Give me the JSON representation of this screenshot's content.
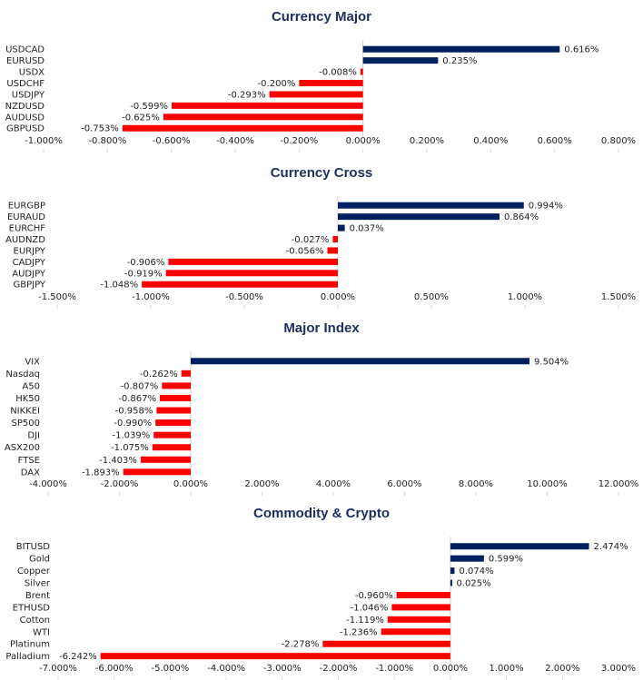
{
  "colors": {
    "positive": "#002060",
    "negative": "#ff0000",
    "title": "#1c2f5e"
  },
  "chart_data": [
    {
      "type": "bar",
      "orientation": "horizontal",
      "title": "Currency Major",
      "categories": [
        "USDCAD",
        "EURUSD",
        "USDX",
        "USDCHF",
        "USDJPY",
        "NZDUSD",
        "AUDUSD",
        "GBPUSD"
      ],
      "values": [
        0.616,
        0.235,
        -0.008,
        -0.2,
        -0.293,
        -0.599,
        -0.625,
        -0.753
      ],
      "value_labels": [
        "0.616%",
        "0.235%",
        "-0.008%",
        "-0.200%",
        "-0.293%",
        "-0.599%",
        "-0.625%",
        "-0.753%"
      ],
      "xlim": [
        -1.0,
        0.8
      ],
      "ticks": [
        -1.0,
        -0.8,
        -0.6,
        -0.4,
        -0.2,
        0.0,
        0.2,
        0.4,
        0.6,
        0.8
      ],
      "tick_labels": [
        "-1.000%",
        "-0.800%",
        "-0.600%",
        "-0.400%",
        "-0.200%",
        "0.000%",
        "0.200%",
        "0.400%",
        "0.600%",
        "0.800%"
      ],
      "xlabel": "",
      "ylabel": "",
      "legend": "none",
      "grid": false
    },
    {
      "type": "bar",
      "orientation": "horizontal",
      "title": "Currency Cross",
      "categories": [
        "EURGBP",
        "EURAUD",
        "EURCHF",
        "AUDNZD",
        "EURJPY",
        "CADJPY",
        "AUDJPY",
        "GBPJPY"
      ],
      "values": [
        0.994,
        0.864,
        0.037,
        -0.027,
        -0.056,
        -0.906,
        -0.919,
        -1.048
      ],
      "value_labels": [
        "0.994%",
        "0.864%",
        "0.037%",
        "-0.027%",
        "-0.056%",
        "-0.906%",
        "-0.919%",
        "-1.048%"
      ],
      "xlim": [
        -1.5,
        1.5
      ],
      "ticks": [
        -1.5,
        -1.0,
        -0.5,
        0.0,
        0.5,
        1.0,
        1.5
      ],
      "tick_labels": [
        "-1.500%",
        "-1.000%",
        "-0.500%",
        "0.000%",
        "0.500%",
        "1.000%",
        "1.500%"
      ],
      "xlabel": "",
      "ylabel": "",
      "legend": "none",
      "grid": false
    },
    {
      "type": "bar",
      "orientation": "horizontal",
      "title": "Major Index",
      "categories": [
        "VIX",
        "Nasdaq",
        "A50",
        "HK50",
        "NIKKEI",
        "SP500",
        "DJI",
        "ASX200",
        "FTSE",
        "DAX"
      ],
      "values": [
        9.504,
        -0.262,
        -0.807,
        -0.867,
        -0.958,
        -0.99,
        -1.039,
        -1.075,
        -1.403,
        -1.893
      ],
      "value_labels": [
        "9.504%",
        "-0.262%",
        "-0.807%",
        "-0.867%",
        "-0.958%",
        "-0.990%",
        "-1.039%",
        "-1.075%",
        "-1.403%",
        "-1.893%"
      ],
      "xlim": [
        -4.0,
        12.0
      ],
      "ticks": [
        -4.0,
        -2.0,
        0.0,
        2.0,
        4.0,
        6.0,
        8.0,
        10.0,
        12.0
      ],
      "tick_labels": [
        "-4.000%",
        "-2.000%",
        "0.000%",
        "2.000%",
        "4.000%",
        "6.000%",
        "8.000%",
        "10.000%",
        "12.000%"
      ],
      "xlabel": "",
      "ylabel": "",
      "legend": "none",
      "grid": false
    },
    {
      "type": "bar",
      "orientation": "horizontal",
      "title": "Commodity & Crypto",
      "categories": [
        "BITUSD",
        "Gold",
        "Copper",
        "Silver",
        "Brent",
        "ETHUSD",
        "Cotton",
        "WTI",
        "Platinum",
        "Palladium"
      ],
      "values": [
        2.474,
        0.599,
        0.074,
        0.025,
        -0.96,
        -1.046,
        -1.119,
        -1.236,
        -2.278,
        -6.242
      ],
      "value_labels": [
        "2.474%",
        "0.599%",
        "0.074%",
        "0.025%",
        "-0.960%",
        "-1.046%",
        "-1.119%",
        "-1.236%",
        "-2.278%",
        "-6.242%"
      ],
      "xlim": [
        -7.0,
        3.0
      ],
      "ticks": [
        -7.0,
        -6.0,
        -5.0,
        -4.0,
        -3.0,
        -2.0,
        -1.0,
        0.0,
        1.0,
        2.0,
        3.0
      ],
      "tick_labels": [
        "-7.000%",
        "-6.000%",
        "-5.000%",
        "-4.000%",
        "-3.000%",
        "-2.000%",
        "-1.000%",
        "0.000%",
        "1.000%",
        "2.000%",
        "3.000%"
      ],
      "xlabel": "",
      "ylabel": "",
      "legend": "none",
      "grid": false
    }
  ]
}
